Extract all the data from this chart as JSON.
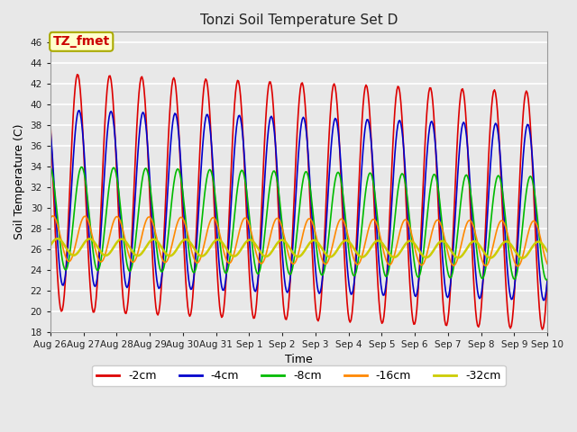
{
  "title": "Tonzi Soil Temperature Set D",
  "xlabel": "Time",
  "ylabel": "Soil Temperature (C)",
  "ylim": [
    18,
    47
  ],
  "yticks": [
    18,
    20,
    22,
    24,
    26,
    28,
    30,
    32,
    34,
    36,
    38,
    40,
    42,
    44,
    46
  ],
  "date_labels": [
    "Aug 26",
    "Aug 27",
    "Aug 28",
    "Aug 29",
    "Aug 30",
    "Aug 31",
    "Sep 1",
    "Sep 2",
    "Sep 3",
    "Sep 4",
    "Sep 5",
    "Sep 6",
    "Sep 7",
    "Sep 8",
    "Sep 9",
    "Sep 10"
  ],
  "annotation_text": "TZ_fmet",
  "annotation_color": "#cc0000",
  "annotation_bg": "#ffffcc",
  "annotation_border": "#aaaa00",
  "legend_entries": [
    "-2cm",
    "-4cm",
    "-8cm",
    "-16cm",
    "-32cm"
  ],
  "line_colors": [
    "#dd0000",
    "#0000cc",
    "#00bb00",
    "#ff8800",
    "#cccc00"
  ],
  "line_widths": [
    1.2,
    1.2,
    1.2,
    1.2,
    1.8
  ],
  "plot_bg_color": "#e8e8e8",
  "fig_bg_color": "#e8e8e8",
  "grid_color": "#ffffff",
  "n_days": 15.5,
  "n_points": 500,
  "amp_2cm": 11.5,
  "amp_4cm": 8.5,
  "amp_8cm": 5.0,
  "amp_16cm": 2.2,
  "amp_32cm": 0.8,
  "mean_2cm": 31.5,
  "mean_4cm": 31.0,
  "mean_8cm": 29.0,
  "mean_16cm": 27.0,
  "mean_32cm": 26.2,
  "trend_2cm": -1.8,
  "trend_4cm": -1.5,
  "trend_8cm": -1.0,
  "trend_16cm": -0.5,
  "trend_32cm": -0.3,
  "phase_lag_4cm": 1.0,
  "phase_lag_8cm": 3.0,
  "phase_lag_16cm": 5.5,
  "phase_lag_32cm": 9.0
}
